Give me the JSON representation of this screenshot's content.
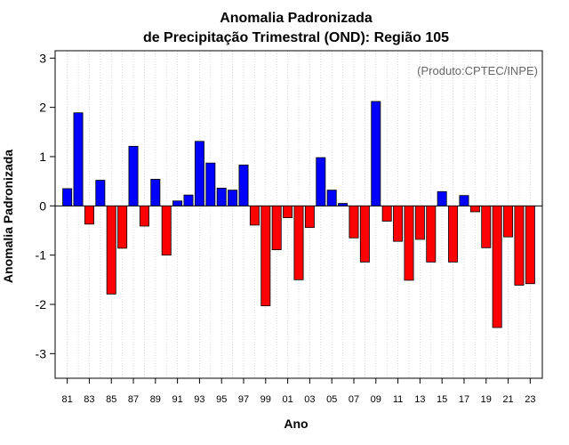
{
  "chart_data": {
    "type": "bar",
    "title_line1": "Anomalia Padronizada",
    "title_line2": "de Precipitação Trimestral (OND): Região 105",
    "annotation": "(Produto:CPTEC/INPE)",
    "xlabel": "Ano",
    "ylabel": "Anomalia Padronizada",
    "ylim": [
      -3.5,
      3.15
    ],
    "yticks": [
      -3,
      -2,
      -1,
      0,
      1,
      2,
      3
    ],
    "xtick_labels": [
      "81",
      "83",
      "85",
      "87",
      "89",
      "91",
      "93",
      "95",
      "97",
      "99",
      "01",
      "03",
      "05",
      "07",
      "09",
      "11",
      "13",
      "15",
      "17",
      "19",
      "21",
      "23"
    ],
    "categories": [
      "1981",
      "1982",
      "1983",
      "1984",
      "1985",
      "1986",
      "1987",
      "1988",
      "1989",
      "1990",
      "1991",
      "1992",
      "1993",
      "1994",
      "1995",
      "1996",
      "1997",
      "1998",
      "1999",
      "2000",
      "2001",
      "2002",
      "2003",
      "2004",
      "2005",
      "2006",
      "2007",
      "2008",
      "2009",
      "2010",
      "2011",
      "2012",
      "2013",
      "2014",
      "2015",
      "2016",
      "2017",
      "2018",
      "2019",
      "2020",
      "2021",
      "2022",
      "2023"
    ],
    "values": [
      0.35,
      1.89,
      -0.37,
      0.52,
      -1.79,
      -0.86,
      1.21,
      -0.41,
      0.54,
      -1.0,
      0.1,
      0.22,
      1.31,
      0.87,
      0.36,
      0.32,
      0.83,
      -0.39,
      -2.03,
      -0.89,
      -0.24,
      -1.5,
      -0.44,
      0.98,
      0.32,
      0.05,
      -0.65,
      -1.14,
      2.12,
      -0.31,
      -0.72,
      -1.51,
      -0.68,
      -1.14,
      0.29,
      -1.14,
      0.21,
      -0.12,
      -0.85,
      -2.47,
      -0.63,
      -1.61,
      -1.58
    ],
    "colors": {
      "positive": "#0000ff",
      "negative": "#ff0000",
      "zero_line": "#000000",
      "grid": "#bbbbbb"
    },
    "grid": "vertical dotted"
  }
}
